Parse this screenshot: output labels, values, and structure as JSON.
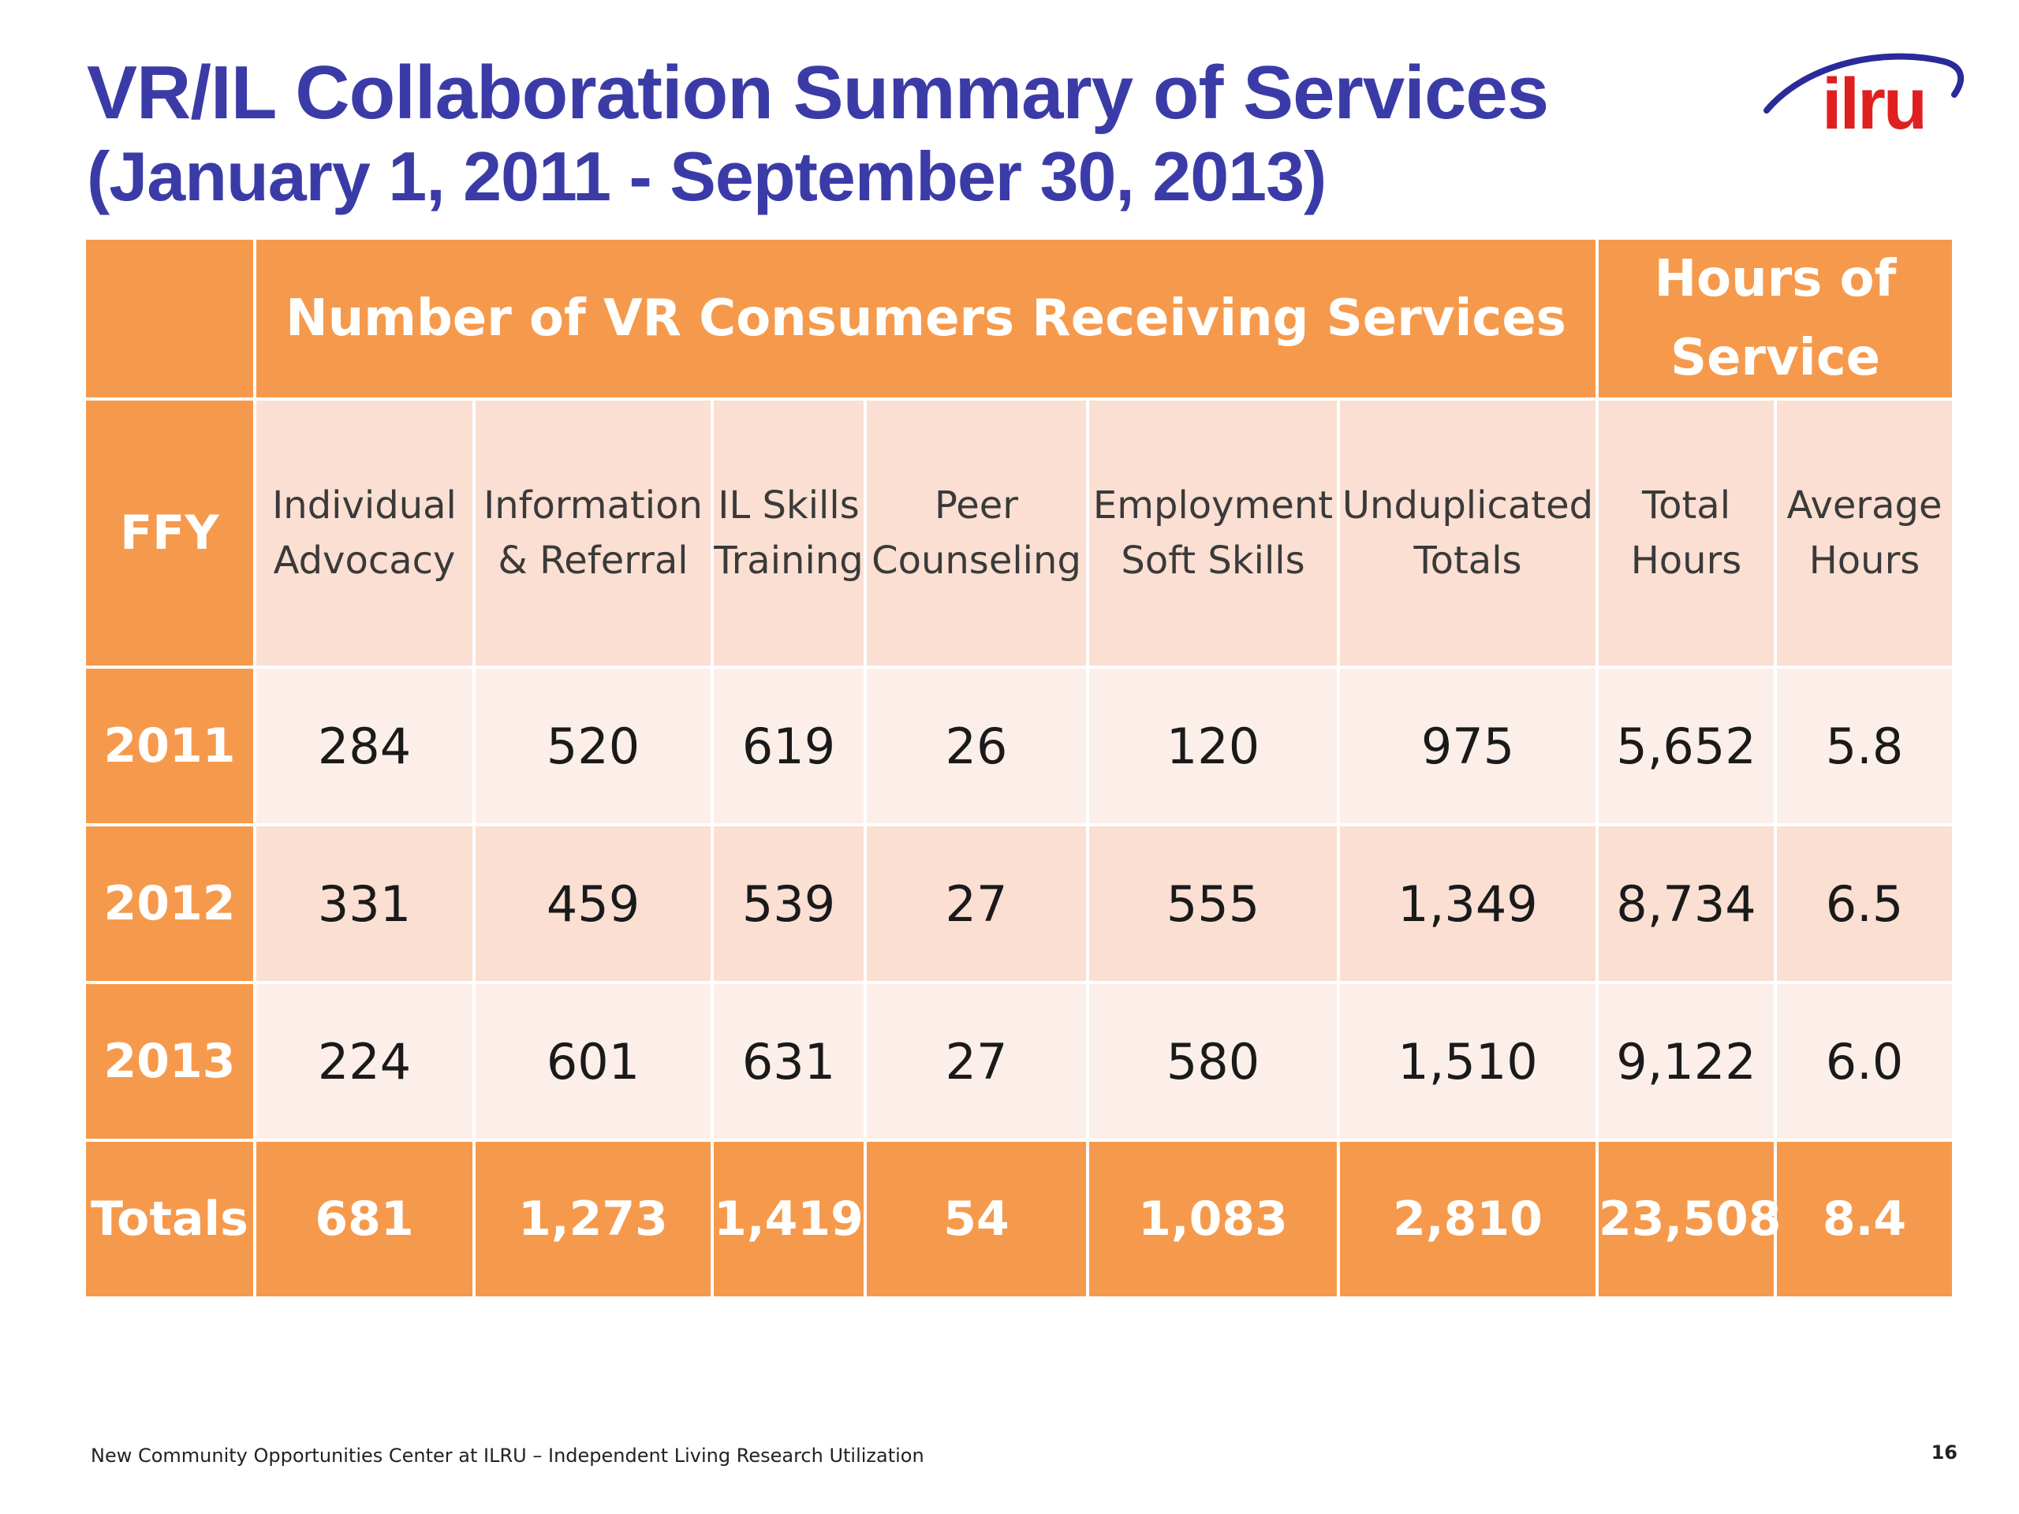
{
  "title": "VR/IL Collaboration Summary of Services",
  "subtitle": "(January 1, 2011 - September 30, 2013)",
  "logo_text": "ilru",
  "table": {
    "band_left": "Number of VR Consumers Receiving Services",
    "band_right": "Hours of Service",
    "columns": [
      "FFY",
      "Individual Advocacy",
      "Information & Referral",
      "IL Skills Training",
      "Peer Counseling",
      "Employment Soft Skills",
      "Unduplicated Totals",
      "Total Hours",
      "Average Hours"
    ],
    "rows": [
      {
        "ffy": "2011",
        "values": [
          "284",
          "520",
          "619",
          "26",
          "120",
          "975",
          "5,652",
          "5.8"
        ]
      },
      {
        "ffy": "2012",
        "values": [
          "331",
          "459",
          "539",
          "27",
          "555",
          "1,349",
          "8,734",
          "6.5"
        ]
      },
      {
        "ffy": "2013",
        "values": [
          "224",
          "601",
          "631",
          "27",
          "580",
          "1,510",
          "9,122",
          "6.0"
        ]
      }
    ],
    "totals": {
      "label": "Totals",
      "values": [
        "681",
        "1,273",
        "1,419",
        "54",
        "1,083",
        "2,810",
        "23,508",
        "8.4"
      ]
    }
  },
  "colors": {
    "title": "#3b3ba8",
    "orange": "#f59a4c",
    "light_row": "#fcefea",
    "mid_row": "#fadfd2",
    "logo": "#e02020"
  },
  "footer": "New Community Opportunities Center at ILRU – Independent Living Research Utilization",
  "page_number": "16"
}
